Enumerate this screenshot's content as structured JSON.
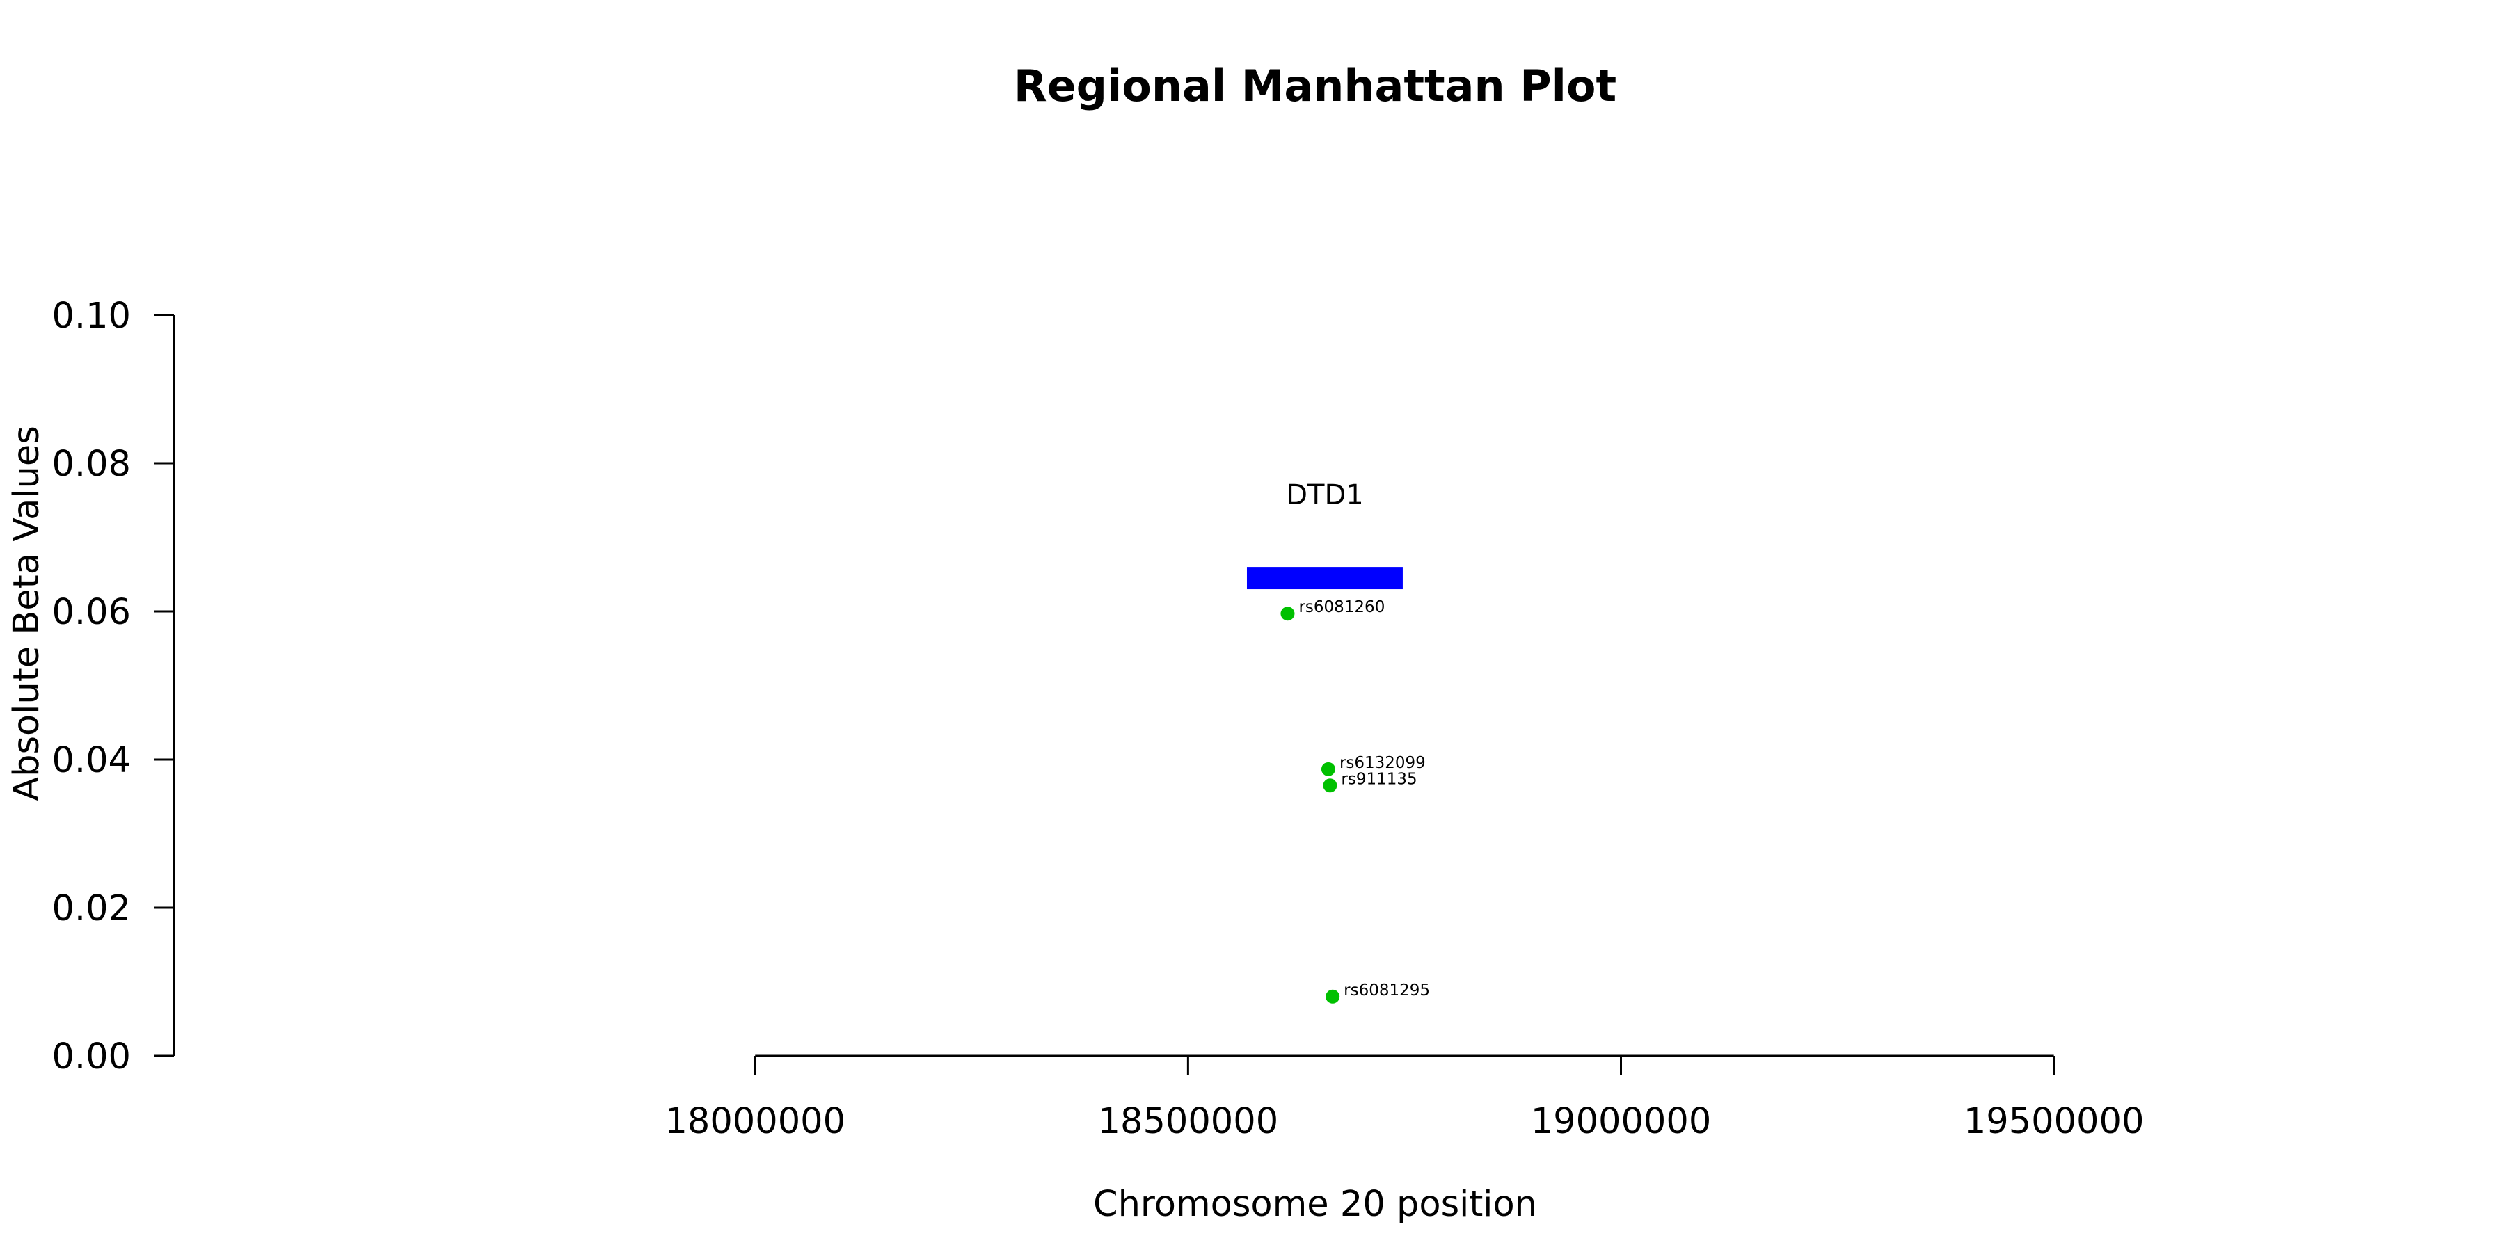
{
  "chart_data": {
    "type": "scatter",
    "title": "Regional Manhattan Plot",
    "xlabel": "Chromosome 20 position",
    "ylabel": "Absolute Beta Values",
    "xlim": [
      17610000,
      19780000
    ],
    "ylim": [
      0,
      0.1
    ],
    "x_ticks": [
      18000000,
      18500000,
      19000000,
      19500000
    ],
    "y_ticks": [
      0.0,
      0.02,
      0.04,
      0.06,
      0.08,
      0.1
    ],
    "y_tick_labels": [
      "0.00",
      "0.02",
      "0.04",
      "0.06",
      "0.08",
      "0.10"
    ],
    "grid": false,
    "points": [
      {
        "label": "rs6081260",
        "x": 18615000,
        "y": 0.0597
      },
      {
        "label": "rs6132099",
        "x": 18662000,
        "y": 0.0387
      },
      {
        "label": "rs911135",
        "x": 18664000,
        "y": 0.0365
      },
      {
        "label": "rs6081295",
        "x": 18667000,
        "y": 0.008
      }
    ],
    "point_color": "#00c000",
    "genes": [
      {
        "name": "DTD1",
        "start": 18568000,
        "end": 18748000,
        "y_low": 0.063,
        "y_high": 0.066,
        "color": "#0000ff"
      }
    ]
  }
}
